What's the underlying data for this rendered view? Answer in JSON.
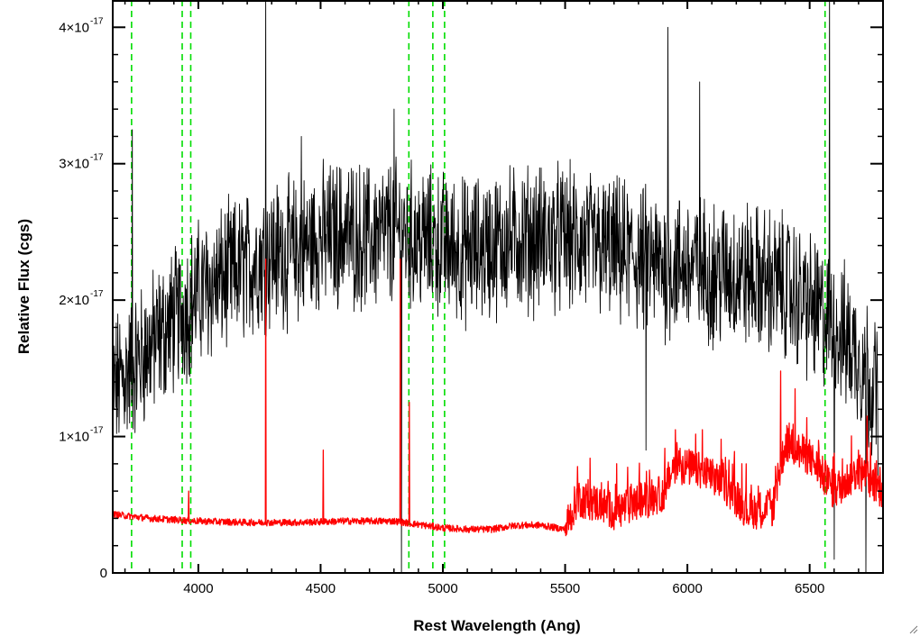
{
  "chart_data": {
    "type": "line",
    "title": "",
    "xlabel": "Rest Wavelength (Ang)",
    "ylabel": "Relative Flux (cgs)",
    "xlim": [
      3650,
      6800
    ],
    "ylim": [
      0,
      4.2e-17
    ],
    "x_ticks": [
      4000,
      4500,
      5000,
      5500,
      6000,
      6500
    ],
    "y_ticks": [
      {
        "value": 0,
        "label": "0"
      },
      {
        "value": 1e-17,
        "mantissa": "1",
        "exponent": "-17"
      },
      {
        "value": 2e-17,
        "mantissa": "2",
        "exponent": "-17"
      },
      {
        "value": 3e-17,
        "mantissa": "3",
        "exponent": "-17"
      },
      {
        "value": 4e-17,
        "mantissa": "4",
        "exponent": "-17"
      }
    ],
    "grid": false,
    "legend": "none",
    "colors": {
      "observed": "#000000",
      "model": "#ff0000",
      "lines": "#00dd00"
    },
    "marker_lines": [
      3727,
      3934,
      3969,
      4861,
      4959,
      5007,
      6563
    ],
    "series": [
      {
        "style": "black-noisy",
        "color": "#000000",
        "x": [
          3650,
          3700,
          3750,
          3800,
          3850,
          3900,
          3950,
          4000,
          4100,
          4200,
          4300,
          4400,
          4500,
          4600,
          4700,
          4800,
          4900,
          5000,
          5100,
          5200,
          5300,
          5400,
          5500,
          5600,
          5700,
          5800,
          5900,
          6000,
          6100,
          6200,
          6300,
          6400,
          6500,
          6600,
          6700,
          6780
        ],
        "y": [
          1.35e-17,
          1.45e-17,
          1.55e-17,
          1.65e-17,
          1.75e-17,
          1.85e-17,
          1.95e-17,
          2.05e-17,
          2.15e-17,
          2.25e-17,
          2.35e-17,
          2.35e-17,
          2.45e-17,
          2.5e-17,
          2.45e-17,
          2.5e-17,
          2.45e-17,
          2.4e-17,
          2.35e-17,
          2.4e-17,
          2.45e-17,
          2.45e-17,
          2.45e-17,
          2.4e-17,
          2.35e-17,
          2.3e-17,
          2.25e-17,
          2.25e-17,
          2.2e-17,
          2.2e-17,
          2.15e-17,
          2.1e-17,
          1.95e-17,
          1.8e-17,
          1.6e-17,
          1.3e-17
        ],
        "spikes": [
          {
            "x": 3730,
            "y": 3.25e-17
          },
          {
            "x": 4275,
            "y": 4.3e-17
          },
          {
            "x": 4420,
            "y": 3.2e-17
          },
          {
            "x": 4800,
            "y": 3.4e-17
          },
          {
            "x": 4830,
            "y": 0.0
          },
          {
            "x": 5830,
            "y": 9e-18
          },
          {
            "x": 5920,
            "y": 4e-17
          },
          {
            "x": 6050,
            "y": 3.6e-17
          },
          {
            "x": 6580,
            "y": 4.3e-17
          },
          {
            "x": 6600,
            "y": 1e-18
          },
          {
            "x": 6730,
            "y": 0.0
          }
        ]
      },
      {
        "style": "red-smooth",
        "color": "#ff0000",
        "x": [
          3650,
          3800,
          4000,
          4200,
          4400,
          4600,
          4800,
          5000,
          5100,
          5200,
          5300,
          5400,
          5500,
          5550,
          5650,
          5700,
          5800,
          5900,
          5950,
          6050,
          6150,
          6250,
          6350,
          6400,
          6500,
          6600,
          6700,
          6800
        ],
        "y": [
          4.3e-18,
          4e-18,
          3.8e-18,
          3.7e-18,
          3.7e-18,
          3.8e-18,
          3.8e-18,
          3.3e-18,
          3.2e-18,
          3.2e-18,
          3.5e-18,
          3.5e-18,
          3.2e-18,
          5.5e-18,
          5e-18,
          4.5e-18,
          5.2e-18,
          5.8e-18,
          8e-18,
          7.5e-18,
          6.5e-18,
          4.5e-18,
          4.8e-18,
          9.5e-18,
          8.5e-18,
          6e-18,
          7.5e-18,
          6e-18
        ],
        "spikes": [
          {
            "x": 3960,
            "y": 6e-18
          },
          {
            "x": 4275,
            "y": 2.3e-17
          },
          {
            "x": 4510,
            "y": 9e-18
          },
          {
            "x": 4825,
            "y": 2.3e-17
          },
          {
            "x": 4862,
            "y": 1.25e-17
          },
          {
            "x": 5550,
            "y": 7.8e-18
          },
          {
            "x": 5950,
            "y": 1.05e-17
          },
          {
            "x": 6060,
            "y": 1.05e-17
          },
          {
            "x": 6380,
            "y": 1.48e-17
          },
          {
            "x": 6440,
            "y": 1.35e-17
          },
          {
            "x": 6735,
            "y": 1.15e-17
          }
        ]
      }
    ]
  }
}
